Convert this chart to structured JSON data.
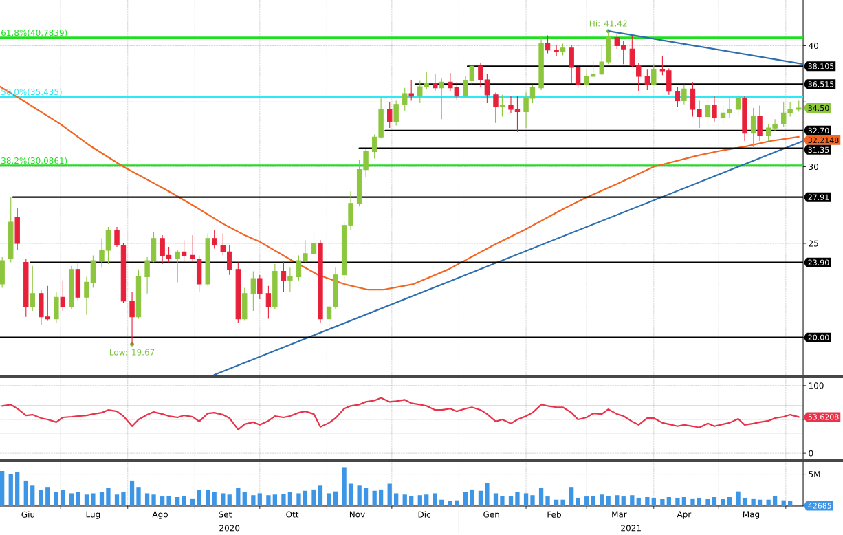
{
  "chart_data": [
    {
      "type": "candlestick",
      "x": [
        "2020-06-04",
        "2020-06-08",
        "2020-06-11",
        "2020-06-15",
        "2020-06-18",
        "2020-06-22",
        "2020-06-25",
        "2020-06-29",
        "2020-07-02",
        "2020-07-06",
        "2020-07-09",
        "2020-07-13",
        "2020-07-16",
        "2020-07-20",
        "2020-07-23",
        "2020-07-27",
        "2020-07-30",
        "2020-08-03",
        "2020-08-06",
        "2020-08-10",
        "2020-08-13",
        "2020-08-17",
        "2020-08-20",
        "2020-08-24",
        "2020-08-27",
        "2020-08-31",
        "2020-09-03",
        "2020-09-07",
        "2020-09-10",
        "2020-09-14",
        "2020-09-17",
        "2020-09-21",
        "2020-09-24",
        "2020-09-28",
        "2020-10-01",
        "2020-10-05",
        "2020-10-08",
        "2020-10-12",
        "2020-10-15",
        "2020-10-19",
        "2020-10-22",
        "2020-10-26",
        "2020-10-29",
        "2020-11-02",
        "2020-11-05",
        "2020-11-09",
        "2020-11-12",
        "2020-11-16",
        "2020-11-19",
        "2020-11-23",
        "2020-11-26",
        "2020-11-30",
        "2020-12-03",
        "2020-12-07",
        "2020-12-10",
        "2020-12-14",
        "2020-12-17",
        "2020-12-21",
        "2020-12-24",
        "2020-12-28",
        "2020-12-31",
        "2021-01-04",
        "2021-01-07",
        "2021-01-11",
        "2021-01-14",
        "2021-01-18",
        "2021-01-21",
        "2021-01-25",
        "2021-01-28",
        "2021-02-01",
        "2021-02-04",
        "2021-02-08",
        "2021-02-11",
        "2021-02-15",
        "2021-02-18",
        "2021-02-22",
        "2021-02-25",
        "2021-03-01",
        "2021-03-04",
        "2021-03-08",
        "2021-03-11",
        "2021-03-15",
        "2021-03-18",
        "2021-03-22",
        "2021-03-25",
        "2021-03-29",
        "2021-04-01",
        "2021-04-05",
        "2021-04-08",
        "2021-04-12",
        "2021-04-15",
        "2021-04-19",
        "2021-04-22",
        "2021-04-26",
        "2021-04-29",
        "2021-05-03",
        "2021-05-06",
        "2021-05-10",
        "2021-05-13",
        "2021-05-17",
        "2021-05-20",
        "2021-05-24",
        "2021-05-27",
        "2021-05-31",
        "2021-06-03",
        "2021-06-07"
      ],
      "ohlc": [
        [
          22.7,
          24.2,
          22.5,
          24.0
        ],
        [
          24.1,
          27.9,
          23.9,
          26.3
        ],
        [
          26.6,
          27.2,
          24.6,
          25.0
        ],
        [
          23.9,
          24.1,
          21.0,
          21.5
        ],
        [
          21.5,
          23.7,
          21.3,
          22.2
        ],
        [
          22.2,
          22.4,
          20.6,
          21.0
        ],
        [
          21.0,
          22.6,
          20.8,
          20.9
        ],
        [
          20.9,
          22.3,
          20.7,
          22.0
        ],
        [
          22.0,
          22.9,
          21.3,
          21.5
        ],
        [
          21.5,
          23.7,
          21.4,
          23.5
        ],
        [
          23.5,
          23.9,
          21.8,
          22.0
        ],
        [
          22.0,
          23.1,
          21.1,
          22.8
        ],
        [
          22.8,
          24.3,
          22.5,
          24.0
        ],
        [
          24.0,
          25.3,
          23.6,
          24.6
        ],
        [
          24.6,
          26.0,
          23.8,
          25.8
        ],
        [
          25.8,
          26.0,
          24.8,
          24.9
        ],
        [
          24.9,
          25.0,
          21.7,
          21.8
        ],
        [
          21.8,
          22.3,
          19.67,
          21.0
        ],
        [
          21.0,
          23.5,
          20.9,
          23.1
        ],
        [
          23.1,
          24.2,
          22.2,
          24.0
        ],
        [
          24.0,
          25.7,
          23.9,
          25.3
        ],
        [
          25.3,
          25.5,
          23.8,
          24.3
        ],
        [
          24.3,
          24.8,
          23.9,
          24.1
        ],
        [
          24.1,
          24.6,
          22.8,
          24.5
        ],
        [
          24.5,
          25.2,
          24.0,
          24.3
        ],
        [
          24.3,
          25.5,
          23.9,
          24.1
        ],
        [
          24.1,
          24.3,
          22.3,
          22.7
        ],
        [
          22.7,
          25.6,
          22.6,
          25.3
        ],
        [
          25.3,
          25.8,
          24.7,
          24.9
        ],
        [
          24.9,
          25.6,
          24.3,
          24.5
        ],
        [
          24.5,
          24.9,
          23.2,
          23.5
        ],
        [
          23.5,
          23.9,
          20.7,
          20.9
        ],
        [
          20.9,
          22.5,
          20.8,
          22.2
        ],
        [
          22.2,
          23.4,
          21.3,
          23.0
        ],
        [
          23.0,
          23.2,
          21.9,
          22.2
        ],
        [
          22.2,
          22.6,
          20.9,
          21.5
        ],
        [
          21.5,
          23.8,
          21.4,
          23.4
        ],
        [
          23.4,
          24.0,
          22.3,
          22.9
        ],
        [
          22.9,
          23.6,
          22.3,
          23.1
        ],
        [
          23.1,
          24.3,
          22.9,
          24.0
        ],
        [
          24.0,
          25.2,
          23.9,
          24.4
        ],
        [
          24.4,
          25.6,
          24.2,
          25.0
        ],
        [
          25.0,
          25.2,
          20.7,
          20.9
        ],
        [
          20.9,
          21.6,
          20.4,
          21.5
        ],
        [
          21.5,
          23.6,
          21.4,
          23.2
        ],
        [
          23.2,
          26.3,
          22.8,
          26.1
        ],
        [
          26.1,
          28.3,
          25.8,
          27.5
        ],
        [
          27.5,
          30.5,
          27.3,
          29.8
        ],
        [
          29.8,
          31.3,
          29.3,
          31.1
        ],
        [
          31.1,
          32.4,
          30.6,
          32.2
        ],
        [
          32.2,
          35.3,
          32.1,
          34.4
        ],
        [
          34.4,
          35.0,
          32.9,
          33.4
        ],
        [
          33.4,
          35.1,
          33.1,
          34.8
        ],
        [
          34.8,
          36.2,
          34.3,
          35.7
        ],
        [
          35.7,
          36.9,
          35.1,
          35.5
        ],
        [
          35.5,
          36.8,
          34.9,
          36.3
        ],
        [
          36.3,
          37.6,
          36.1,
          36.6
        ],
        [
          36.6,
          37.4,
          35.9,
          36.2
        ],
        [
          36.2,
          37.0,
          33.6,
          36.7
        ],
        [
          36.7,
          37.5,
          35.9,
          36.2
        ],
        [
          36.2,
          36.7,
          35.2,
          35.5
        ],
        [
          35.5,
          37.2,
          35.4,
          36.8
        ],
        [
          36.8,
          38.2,
          36.5,
          38.1
        ],
        [
          38.1,
          38.4,
          36.3,
          36.9
        ],
        [
          36.9,
          37.4,
          34.9,
          35.6
        ],
        [
          35.6,
          35.8,
          33.3,
          34.6
        ],
        [
          34.6,
          35.6,
          33.8,
          34.7
        ],
        [
          34.7,
          35.5,
          34.1,
          34.4
        ],
        [
          34.4,
          35.5,
          32.6,
          34.2
        ],
        [
          34.2,
          35.8,
          32.9,
          35.3
        ],
        [
          35.3,
          36.5,
          34.9,
          36.2
        ],
        [
          36.2,
          40.9,
          36.0,
          40.2
        ],
        [
          40.2,
          41.0,
          39.3,
          39.6
        ],
        [
          39.6,
          40.1,
          39.0,
          39.5
        ],
        [
          39.5,
          40.2,
          39.1,
          39.8
        ],
        [
          39.8,
          40.1,
          36.6,
          38.0
        ],
        [
          38.0,
          38.2,
          36.2,
          36.5
        ],
        [
          36.5,
          37.8,
          36.2,
          37.2
        ],
        [
          37.2,
          38.6,
          37.1,
          37.4
        ],
        [
          37.4,
          40.0,
          37.3,
          38.5
        ],
        [
          38.5,
          41.42,
          38.3,
          40.8
        ],
        [
          40.8,
          41.1,
          39.7,
          40.0
        ],
        [
          40.0,
          40.5,
          38.3,
          39.7
        ],
        [
          39.7,
          41.0,
          38.0,
          38.2
        ],
        [
          38.2,
          38.4,
          35.9,
          37.2
        ],
        [
          37.2,
          37.8,
          36.0,
          36.5
        ],
        [
          36.5,
          38.3,
          36.4,
          37.8
        ],
        [
          37.8,
          39.0,
          37.3,
          37.7
        ],
        [
          37.7,
          37.9,
          35.6,
          35.9
        ],
        [
          35.9,
          36.3,
          34.6,
          35.1
        ],
        [
          35.1,
          36.5,
          34.8,
          36.1
        ],
        [
          36.1,
          36.7,
          33.8,
          34.4
        ],
        [
          34.4,
          35.1,
          32.9,
          33.8
        ],
        [
          33.8,
          35.6,
          33.0,
          34.7
        ],
        [
          34.7,
          35.5,
          33.4,
          33.7
        ],
        [
          33.7,
          34.8,
          33.2,
          34.1
        ],
        [
          34.1,
          35.3,
          33.7,
          34.4
        ],
        [
          34.4,
          35.6,
          33.9,
          35.3
        ],
        [
          35.3,
          35.5,
          31.9,
          32.5
        ],
        [
          32.5,
          34.5,
          31.4,
          33.8
        ],
        [
          33.8,
          34.7,
          31.9,
          32.3
        ],
        [
          32.3,
          33.2,
          31.9,
          32.9
        ],
        [
          32.9,
          33.6,
          32.7,
          33.2
        ],
        [
          33.2,
          35.0,
          33.0,
          34.1
        ],
        [
          34.1,
          35.0,
          33.8,
          34.4
        ],
        [
          34.4,
          35.1,
          34.2,
          34.5
        ]
      ],
      "colors": [
        "#8dc63f",
        "#8dc63f",
        "#e8213a",
        "#e8213a",
        "#8dc63f",
        "#e8213a",
        "#e8213a",
        "#8dc63f",
        "#e8213a",
        "#8dc63f",
        "#e8213a",
        "#8dc63f",
        "#8dc63f",
        "#8dc63f",
        "#8dc63f",
        "#e8213a",
        "#e8213a",
        "#e8213a",
        "#8dc63f",
        "#8dc63f",
        "#8dc63f",
        "#e8213a",
        "#e8213a",
        "#8dc63f",
        "#e8213a",
        "#e8213a",
        "#e8213a",
        "#8dc63f",
        "#e8213a",
        "#e8213a",
        "#e8213a",
        "#e8213a",
        "#8dc63f",
        "#8dc63f",
        "#e8213a",
        "#e8213a",
        "#8dc63f",
        "#e8213a",
        "#8dc63f",
        "#8dc63f",
        "#8dc63f",
        "#8dc63f",
        "#e8213a",
        "#8dc63f",
        "#8dc63f",
        "#8dc63f",
        "#8dc63f",
        "#8dc63f",
        "#8dc63f",
        "#8dc63f",
        "#8dc63f",
        "#e8213a",
        "#8dc63f",
        "#8dc63f",
        "#e8213a",
        "#8dc63f",
        "#8dc63f",
        "#e8213a",
        "#8dc63f",
        "#e8213a",
        "#e8213a",
        "#8dc63f",
        "#8dc63f",
        "#e8213a",
        "#e8213a",
        "#e8213a",
        "#8dc63f",
        "#e8213a",
        "#e8213a",
        "#8dc63f",
        "#8dc63f",
        "#8dc63f",
        "#e8213a",
        "#e8213a",
        "#8dc63f",
        "#e8213a",
        "#e8213a",
        "#8dc63f",
        "#8dc63f",
        "#8dc63f",
        "#8dc63f",
        "#e8213a",
        "#e8213a",
        "#e8213a",
        "#e8213a",
        "#e8213a",
        "#8dc63f",
        "#e8213a",
        "#e8213a",
        "#e8213a",
        "#8dc63f",
        "#e8213a",
        "#e8213a",
        "#8dc63f",
        "#e8213a",
        "#8dc63f",
        "#8dc63f",
        "#8dc63f",
        "#e8213a",
        "#8dc63f",
        "#e8213a",
        "#8dc63f",
        "#8dc63f",
        "#8dc63f",
        "#8dc63f",
        "#8dc63f"
      ],
      "value_labels": [
        null,
        null,
        null,
        null,
        null,
        null,
        null,
        null,
        null,
        null,
        null,
        null,
        null,
        null,
        null,
        null,
        null,
        null,
        null,
        null,
        null,
        null,
        null,
        null,
        null,
        null,
        null,
        null,
        null,
        null,
        null,
        null,
        null,
        null,
        null,
        null,
        null,
        null,
        null,
        null,
        null,
        null,
        null,
        null,
        null,
        null,
        null,
        null,
        null,
        null,
        null,
        null,
        null,
        null,
        null,
        null,
        null,
        null,
        null,
        null,
        null,
        null,
        null,
        null,
        null,
        null,
        null,
        null,
        null,
        null,
        null,
        null,
        null,
        null,
        null,
        null,
        null,
        null,
        null,
        null,
        null,
        null,
        null,
        null,
        null,
        null,
        null,
        null,
        null,
        null,
        null,
        null,
        null,
        null,
        null,
        null,
        null,
        null,
        null,
        null,
        null,
        null,
        null,
        null,
        null,
        "34.50"
      ],
      "series": [
        {
          "type": "line",
          "color": "#f26522",
          "x": [
            "2020-06-03",
            "2020-06-12",
            "2020-07-01",
            "2020-07-14",
            "2020-07-30",
            "2020-08-20",
            "2020-09-01",
            "2020-09-14",
            "2020-09-24",
            "2020-10-01",
            "2020-10-16",
            "2020-10-28",
            "2020-11-09",
            "2020-11-20",
            "2020-11-27",
            "2020-12-11",
            "2020-12-27",
            "2021-01-17",
            "2021-01-31",
            "2021-02-19",
            "2021-03-01",
            "2021-03-15",
            "2021-04-01",
            "2021-04-21",
            "2021-05-03",
            "2021-05-14",
            "2021-05-25",
            "2021-06-07"
          ],
          "values": [
            36.3,
            35.3,
            33.2,
            31.6,
            30.0,
            28.3,
            27.3,
            26.2,
            25.5,
            25.1,
            24.0,
            23.2,
            22.7,
            22.4,
            22.4,
            22.7,
            23.5,
            24.9,
            25.8,
            27.2,
            27.9,
            28.8,
            30.0,
            30.8,
            31.2,
            31.5,
            31.9,
            32.2148
          ],
          "value_labels": [
            null,
            null,
            null,
            null,
            null,
            null,
            null,
            null,
            null,
            null,
            null,
            null,
            null,
            null,
            null,
            null,
            null,
            null,
            null,
            null,
            null,
            null,
            null,
            null,
            null,
            null,
            null,
            "32.2148"
          ]
        },
        {
          "type": "line",
          "color": "#2e6fb0",
          "x": [
            "2020-09-10",
            "2021-06-09"
          ],
          "values": [
            18.3,
            31.9
          ]
        },
        {
          "type": "line",
          "color": "#2e6fb0",
          "x": [
            "2021-03-11",
            "2021-06-09"
          ],
          "values": [
            41.42,
            38.3
          ]
        },
        {
          "type": "line",
          "color": "#000000",
          "x": [
            "2021-01-05",
            "2021-06-09"
          ],
          "values": [
            38.105,
            38.105
          ],
          "value_labels": [
            null,
            "38.105"
          ]
        },
        {
          "type": "line",
          "color": "#000000",
          "x": [
            "2020-12-12",
            "2021-06-09"
          ],
          "values": [
            36.515,
            36.515
          ],
          "value_labels": [
            null,
            "36.515"
          ]
        },
        {
          "type": "line",
          "color": "#000000",
          "x": [
            "2020-11-28",
            "2021-06-09"
          ],
          "values": [
            32.7,
            32.7
          ],
          "value_labels": [
            null,
            "32.70"
          ]
        },
        {
          "type": "line",
          "color": "#000000",
          "x": [
            "2020-11-16",
            "2021-06-09"
          ],
          "values": [
            31.35,
            31.35
          ],
          "value_labels": [
            null,
            "31.35"
          ]
        },
        {
          "type": "line",
          "color": "#000000",
          "x": [
            "2020-06-09",
            "2021-06-09"
          ],
          "values": [
            27.91,
            27.91
          ],
          "value_labels": [
            null,
            "27.91"
          ]
        },
        {
          "type": "line",
          "color": "#000000",
          "x": [
            "2020-06-17",
            "2021-06-09"
          ],
          "values": [
            23.9,
            23.9
          ],
          "value_labels": [
            null,
            "23.90"
          ]
        },
        {
          "type": "line",
          "color": "#000000",
          "x": [
            "2020-06-03",
            "2021-06-09"
          ],
          "values": [
            20,
            20
          ],
          "value_labels": [
            null,
            "20.00"
          ]
        }
      ],
      "ref_lines": [
        {
          "axis": "y",
          "value": 40.7839,
          "label": "61.8%(40.7839)",
          "color": "#1ee01e"
        },
        {
          "axis": "y",
          "value": 35.435,
          "label": "50.0%(35.435)",
          "color": "#2ee8f5"
        },
        {
          "axis": "y",
          "value": 30.0861,
          "label": "38.2%(30.0861)",
          "color": "#1ee01e"
        }
      ],
      "annotations": [
        {
          "text": "Hi: 41.42",
          "x": "2021-03-11",
          "y": 41.42
        },
        {
          "text": "Low: 19.67",
          "x": "2020-08-03",
          "y": 19.67
        }
      ],
      "xlim": [
        "2020-06-03",
        "2021-06-09"
      ],
      "ylim": [
        18.3,
        44.6
      ],
      "log": true,
      "xticks": [
        {
          "value": "2020-07-01",
          "label": null
        },
        {
          "value": "2020-08-01",
          "label": null
        },
        {
          "value": "2020-09-01",
          "label": null
        },
        {
          "value": "2020-10-01",
          "label": null
        },
        {
          "value": "2020-11-01",
          "label": null
        },
        {
          "value": "2020-12-01",
          "label": null
        },
        {
          "value": "2021-01-01",
          "label": null
        },
        {
          "value": "2021-02-01",
          "label": null
        },
        {
          "value": "2021-03-01",
          "label": null
        },
        {
          "value": "2021-04-01",
          "label": null
        },
        {
          "value": "2021-05-01",
          "label": null
        },
        {
          "value": "2021-06-01",
          "label": null
        }
      ],
      "yticks": [
        {
          "value": 20,
          "label": null
        },
        25,
        30,
        {
          "value": 35,
          "label": null
        },
        40
      ],
      "grid": true,
      "tick_labels": "y"
    },
    {
      "type": "line",
      "x": [
        "2020-06-04",
        "2020-06-08",
        "2020-06-11",
        "2020-06-15",
        "2020-06-18",
        "2020-06-22",
        "2020-06-25",
        "2020-06-29",
        "2020-07-02",
        "2020-07-06",
        "2020-07-09",
        "2020-07-13",
        "2020-07-16",
        "2020-07-20",
        "2020-07-23",
        "2020-07-27",
        "2020-07-30",
        "2020-08-03",
        "2020-08-06",
        "2020-08-10",
        "2020-08-13",
        "2020-08-17",
        "2020-08-20",
        "2020-08-24",
        "2020-08-27",
        "2020-08-31",
        "2020-09-03",
        "2020-09-07",
        "2020-09-10",
        "2020-09-14",
        "2020-09-17",
        "2020-09-21",
        "2020-09-24",
        "2020-09-28",
        "2020-10-01",
        "2020-10-05",
        "2020-10-08",
        "2020-10-12",
        "2020-10-15",
        "2020-10-19",
        "2020-10-22",
        "2020-10-26",
        "2020-10-29",
        "2020-11-02",
        "2020-11-05",
        "2020-11-09",
        "2020-11-12",
        "2020-11-16",
        "2020-11-19",
        "2020-11-23",
        "2020-11-26",
        "2020-11-30",
        "2020-12-03",
        "2020-12-07",
        "2020-12-10",
        "2020-12-14",
        "2020-12-17",
        "2020-12-21",
        "2020-12-24",
        "2020-12-28",
        "2020-12-31",
        "2021-01-04",
        "2021-01-07",
        "2021-01-11",
        "2021-01-14",
        "2021-01-18",
        "2021-01-21",
        "2021-01-25",
        "2021-01-28",
        "2021-02-01",
        "2021-02-04",
        "2021-02-08",
        "2021-02-11",
        "2021-02-15",
        "2021-02-18",
        "2021-02-22",
        "2021-02-25",
        "2021-03-01",
        "2021-03-04",
        "2021-03-08",
        "2021-03-11",
        "2021-03-15",
        "2021-03-18",
        "2021-03-22",
        "2021-03-25",
        "2021-03-29",
        "2021-04-01",
        "2021-04-05",
        "2021-04-08",
        "2021-04-12",
        "2021-04-15",
        "2021-04-19",
        "2021-04-22",
        "2021-04-26",
        "2021-04-29",
        "2021-05-03",
        "2021-05-06",
        "2021-05-10",
        "2021-05-13",
        "2021-05-17",
        "2021-05-20",
        "2021-05-24",
        "2021-05-27",
        "2021-05-31",
        "2021-06-03",
        "2021-06-07"
      ],
      "series": [
        {
          "color": "#e8334a",
          "values": [
            70,
            72,
            66,
            56,
            57,
            52,
            50,
            46,
            53,
            54,
            55,
            56,
            58,
            60,
            64,
            62,
            55,
            40,
            50,
            57,
            61,
            58,
            55,
            53,
            56,
            54,
            47,
            59,
            60,
            57,
            52,
            35,
            43,
            46,
            42,
            48,
            55,
            53,
            55,
            60,
            62,
            58,
            39,
            45,
            52,
            66,
            70,
            72,
            76,
            78,
            82,
            76,
            77,
            79,
            74,
            72,
            70,
            64,
            64,
            66,
            62,
            66,
            68,
            64,
            58,
            47,
            50,
            44,
            50,
            55,
            60,
            72,
            70,
            68,
            68,
            60,
            50,
            53,
            59,
            58,
            65,
            58,
            55,
            47,
            42,
            52,
            52,
            45,
            43,
            40,
            42,
            40,
            38,
            44,
            40,
            43,
            45,
            51,
            42,
            44,
            46,
            48,
            52,
            54,
            57,
            53.6208
          ],
          "value_labels": [
            null,
            null,
            null,
            null,
            null,
            null,
            null,
            null,
            null,
            null,
            null,
            null,
            null,
            null,
            null,
            null,
            null,
            null,
            null,
            null,
            null,
            null,
            null,
            null,
            null,
            null,
            null,
            null,
            null,
            null,
            null,
            null,
            null,
            null,
            null,
            null,
            null,
            null,
            null,
            null,
            null,
            null,
            null,
            null,
            null,
            null,
            null,
            null,
            null,
            null,
            null,
            null,
            null,
            null,
            null,
            null,
            null,
            null,
            null,
            null,
            null,
            null,
            null,
            null,
            null,
            null,
            null,
            null,
            null,
            null,
            null,
            null,
            null,
            null,
            null,
            null,
            null,
            null,
            null,
            null,
            null,
            null,
            null,
            null,
            null,
            null,
            null,
            null,
            null,
            null,
            null,
            null,
            null,
            null,
            null,
            null,
            null,
            null,
            null,
            null,
            null,
            null,
            null,
            null,
            null,
            "53.6208"
          ]
        }
      ],
      "ref_lines": [
        {
          "axis": "y",
          "value": 70,
          "color": "#e03a3a"
        },
        {
          "axis": "y",
          "value": 30,
          "color": "#3ccc3c"
        }
      ],
      "xlim": [
        "2020-06-03",
        "2021-06-09"
      ],
      "ylim": [
        -9,
        112
      ],
      "xticks": [
        {
          "value": "2020-07-01",
          "label": null
        },
        {
          "value": "2020-08-01",
          "label": null
        },
        {
          "value": "2020-09-01",
          "label": null
        },
        {
          "value": "2020-10-01",
          "label": null
        },
        {
          "value": "2020-11-01",
          "label": null
        },
        {
          "value": "2020-12-01",
          "label": null
        },
        {
          "value": "2021-01-01",
          "label": null
        },
        {
          "value": "2021-02-01",
          "label": null
        },
        {
          "value": "2021-03-01",
          "label": null
        },
        {
          "value": "2021-04-01",
          "label": null
        },
        {
          "value": "2021-05-01",
          "label": null
        },
        {
          "value": "2021-06-01",
          "label": null
        }
      ],
      "yticks": [
        0,
        {
          "value": 50,
          "label": null
        },
        100
      ],
      "grid": true,
      "tick_labels": "y"
    },
    {
      "type": "bar",
      "color": "#3d95e6",
      "x": [
        "2020-06-04",
        "2020-06-08",
        "2020-06-11",
        "2020-06-15",
        "2020-06-18",
        "2020-06-22",
        "2020-06-25",
        "2020-06-29",
        "2020-07-02",
        "2020-07-06",
        "2020-07-09",
        "2020-07-13",
        "2020-07-16",
        "2020-07-20",
        "2020-07-23",
        "2020-07-27",
        "2020-07-30",
        "2020-08-03",
        "2020-08-06",
        "2020-08-10",
        "2020-08-13",
        "2020-08-17",
        "2020-08-20",
        "2020-08-24",
        "2020-08-27",
        "2020-08-31",
        "2020-09-03",
        "2020-09-07",
        "2020-09-10",
        "2020-09-14",
        "2020-09-17",
        "2020-09-21",
        "2020-09-24",
        "2020-09-28",
        "2020-10-01",
        "2020-10-05",
        "2020-10-08",
        "2020-10-12",
        "2020-10-15",
        "2020-10-19",
        "2020-10-22",
        "2020-10-26",
        "2020-10-29",
        "2020-11-02",
        "2020-11-05",
        "2020-11-09",
        "2020-11-12",
        "2020-11-16",
        "2020-11-19",
        "2020-11-23",
        "2020-11-26",
        "2020-11-30",
        "2020-12-03",
        "2020-12-07",
        "2020-12-10",
        "2020-12-14",
        "2020-12-17",
        "2020-12-21",
        "2020-12-24",
        "2020-12-28",
        "2020-12-31",
        "2021-01-04",
        "2021-01-07",
        "2021-01-11",
        "2021-01-14",
        "2021-01-18",
        "2021-01-21",
        "2021-01-25",
        "2021-01-28",
        "2021-02-01",
        "2021-02-04",
        "2021-02-08",
        "2021-02-11",
        "2021-02-15",
        "2021-02-18",
        "2021-02-22",
        "2021-02-25",
        "2021-03-01",
        "2021-03-04",
        "2021-03-08",
        "2021-03-11",
        "2021-03-15",
        "2021-03-18",
        "2021-03-22",
        "2021-03-25",
        "2021-03-29",
        "2021-04-01",
        "2021-04-05",
        "2021-04-08",
        "2021-04-12",
        "2021-04-15",
        "2021-04-19",
        "2021-04-22",
        "2021-04-26",
        "2021-04-29",
        "2021-05-03",
        "2021-05-06",
        "2021-05-10",
        "2021-05-13",
        "2021-05-17",
        "2021-05-20",
        "2021-05-24",
        "2021-05-27",
        "2021-05-31",
        "2021-06-03"
      ],
      "values": [
        5500000,
        5000000,
        5300000,
        4000000,
        3200000,
        2500000,
        3000000,
        2200000,
        2500000,
        2000000,
        2200000,
        1800000,
        2000000,
        2200000,
        2800000,
        1800000,
        2200000,
        4000000,
        3000000,
        2000000,
        1800000,
        1500000,
        1600000,
        1400000,
        1600000,
        1200000,
        2500000,
        2500000,
        2200000,
        2000000,
        1800000,
        2800000,
        2200000,
        1700000,
        2000000,
        1700000,
        1800000,
        1900000,
        2200000,
        2000000,
        2400000,
        2600000,
        3200000,
        2000000,
        2300000,
        6100000,
        3500000,
        3200000,
        2800000,
        2400000,
        2600000,
        3500000,
        2000000,
        1800000,
        1600000,
        1700000,
        1800000,
        2000000,
        1000000,
        800000,
        900000,
        2200000,
        2600000,
        2400000,
        3600000,
        2000000,
        1600000,
        1600000,
        2200000,
        2000000,
        1700000,
        2800000,
        1500000,
        1000000,
        1000000,
        3000000,
        1300000,
        1500000,
        1600000,
        1800000,
        1600000,
        1700000,
        1500000,
        1700000,
        1300000,
        1400000,
        1300000,
        1100000,
        1400000,
        1300000,
        1400000,
        1200000,
        1300000,
        1100000,
        1400000,
        1100000,
        1400000,
        2300000,
        1300000,
        1200000,
        1000000,
        1000000,
        1600000,
        900000,
        800000
      ],
      "xlim": [
        "2020-06-03",
        "2021-06-09"
      ],
      "ylim": [
        0,
        6900000
      ],
      "xticks": [
        {
          "value": "2020-06-16",
          "label": "Giu"
        },
        {
          "value": "2020-07-01",
          "label": null
        },
        {
          "value": "2020-07-16",
          "label": "Lug"
        },
        {
          "value": "2020-08-01",
          "label": null
        },
        {
          "value": "2020-08-16",
          "label": "Ago"
        },
        {
          "value": "2020-09-01",
          "label": null
        },
        {
          "value": "2020-09-15",
          "label": "Set"
        },
        {
          "value": "2020-10-01",
          "label": null
        },
        {
          "value": "2020-10-16",
          "label": "Ott"
        },
        {
          "value": "2020-11-01",
          "label": null
        },
        {
          "value": "2020-11-15",
          "label": "Nov"
        },
        {
          "value": "2020-12-01",
          "label": null
        },
        {
          "value": "2020-12-16",
          "label": "Dic"
        },
        {
          "value": "2021-01-01",
          "label": null
        },
        {
          "value": "2021-01-16",
          "label": "Gen"
        },
        {
          "value": "2021-02-01",
          "label": null
        },
        {
          "value": "2021-02-14",
          "label": "Feb"
        },
        {
          "value": "2021-03-01",
          "label": null
        },
        {
          "value": "2021-03-16",
          "label": "Mar"
        },
        {
          "value": "2021-04-01",
          "label": null
        },
        {
          "value": "2021-04-15",
          "label": "Apr"
        },
        {
          "value": "2021-05-01",
          "label": null
        },
        {
          "value": "2021-05-16",
          "label": "Mag"
        },
        {
          "value": "2021-06-01",
          "label": null
        }
      ],
      "yticks": [
        {
          "value": 0,
          "label": null
        },
        {
          "value": 5000000,
          "label": "5M"
        }
      ],
      "grid": true,
      "annotations": [
        "2020",
        "2021",
        {
          "text": "42685",
          "y": 42685
        }
      ]
    }
  ]
}
